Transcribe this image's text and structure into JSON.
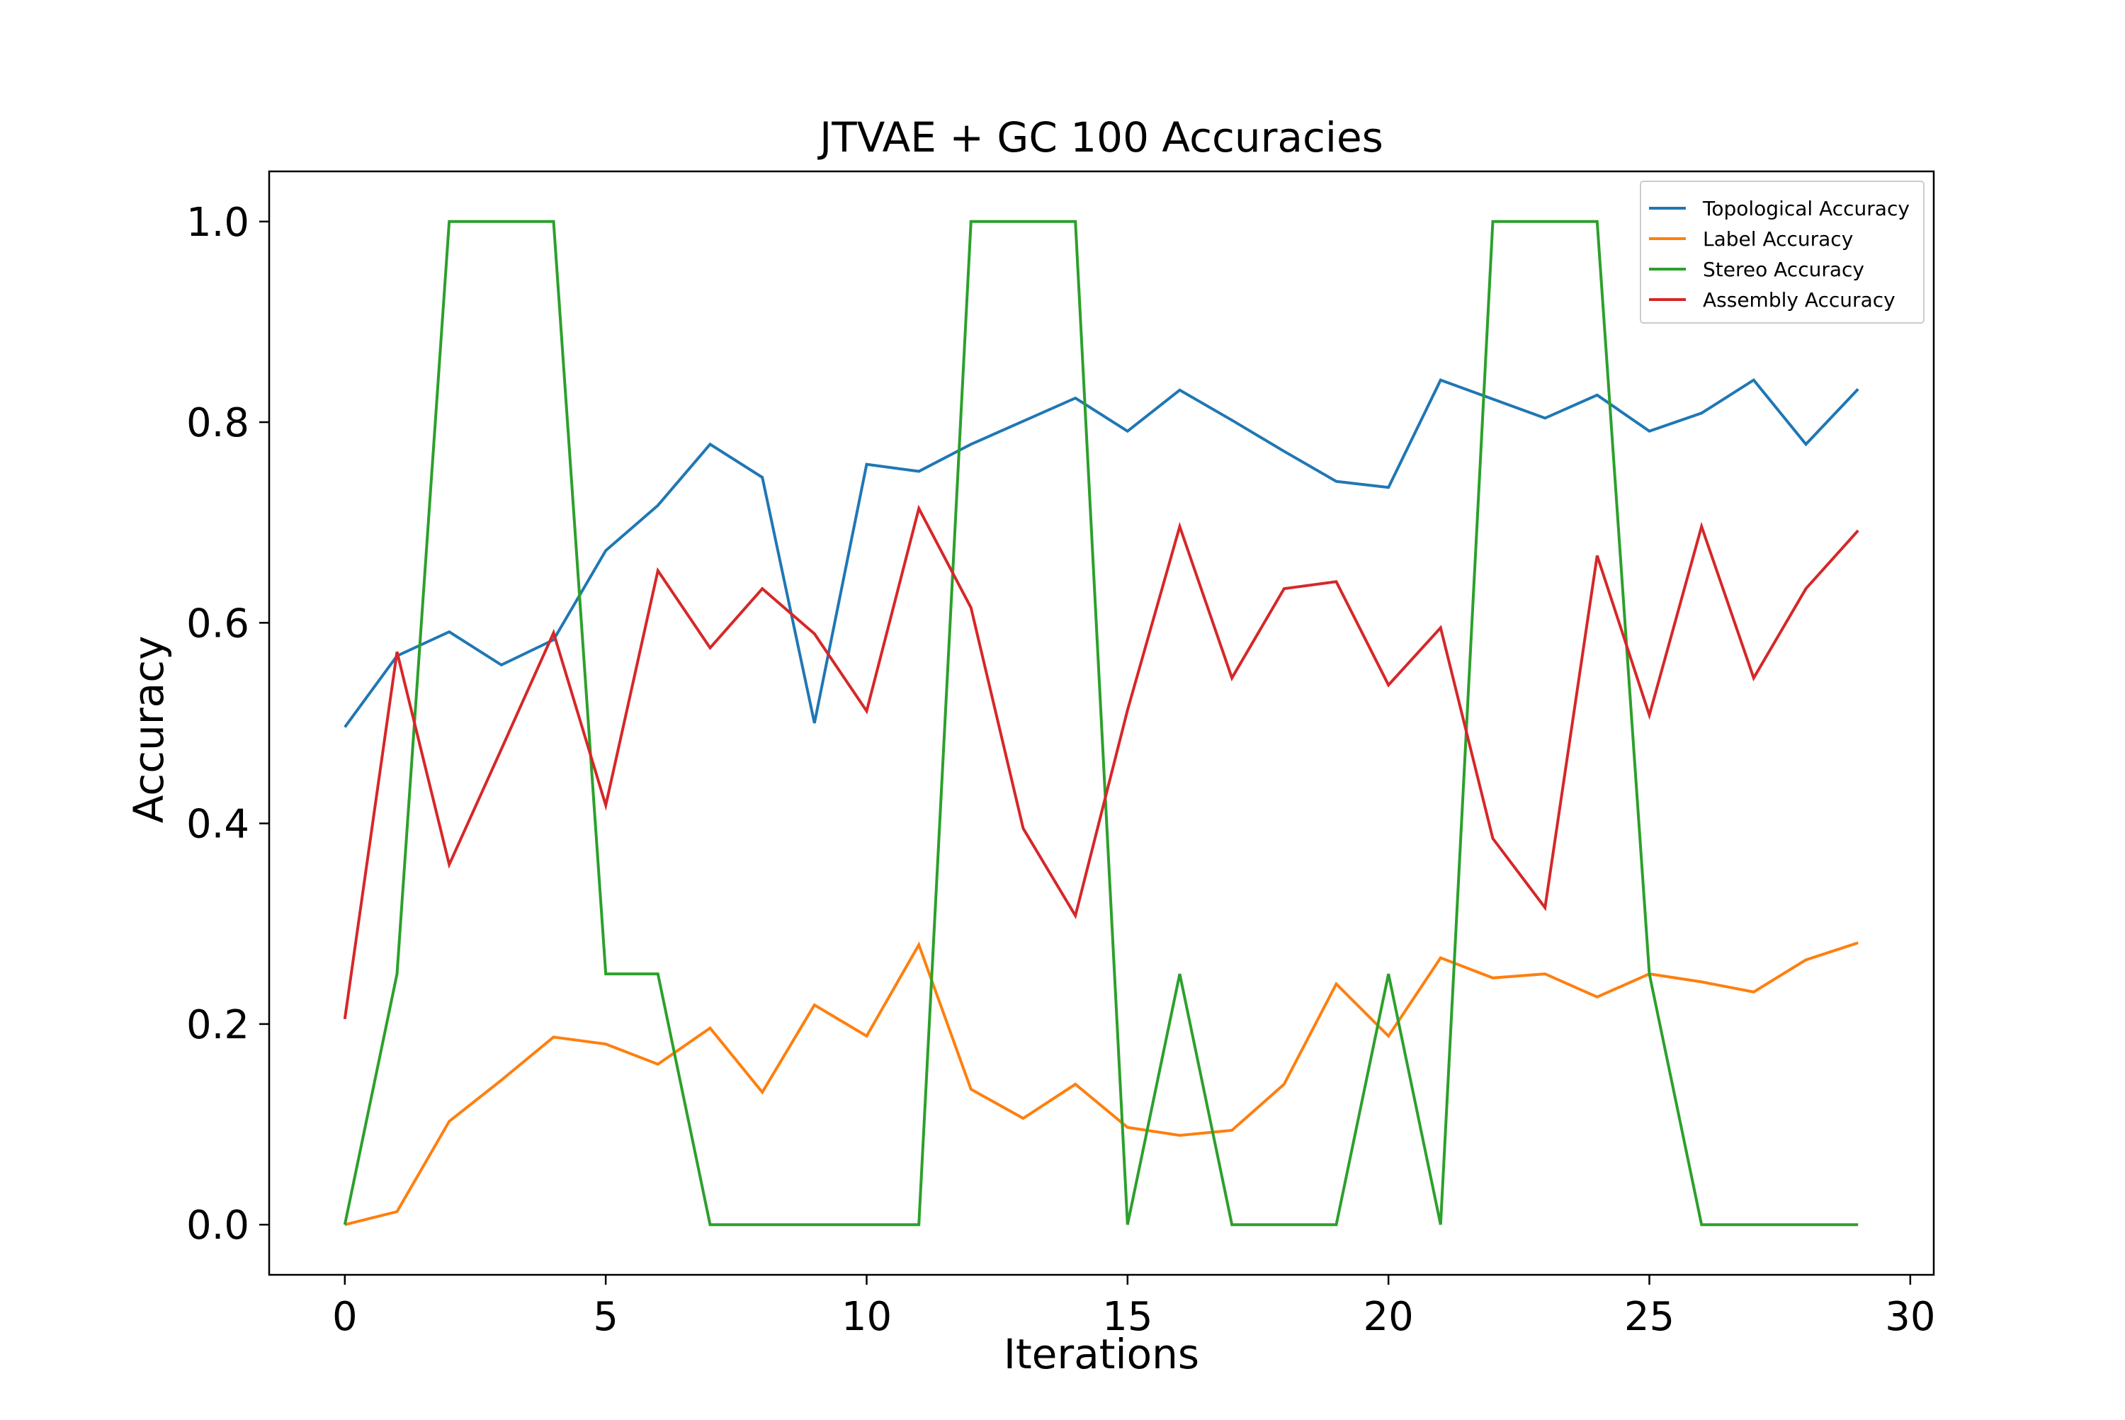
{
  "chart_data": {
    "type": "line",
    "title": "JTVAE + GC 100 Accuracies",
    "xlabel": "Iterations",
    "ylabel": "Accuracy",
    "xlim": [
      -1.45,
      30.45
    ],
    "ylim": [
      -0.05,
      1.05
    ],
    "xticks": [
      0,
      5,
      10,
      15,
      20,
      25,
      30
    ],
    "xtick_labels": [
      "0",
      "5",
      "10",
      "15",
      "20",
      "25",
      "30"
    ],
    "yticks": [
      0.0,
      0.2,
      0.4,
      0.6,
      0.8,
      1.0
    ],
    "ytick_labels": [
      "0.0",
      "0.2",
      "0.4",
      "0.6",
      "0.8",
      "1.0"
    ],
    "grid": false,
    "legend_position": "top-right",
    "x": [
      0,
      1,
      2,
      3,
      4,
      5,
      6,
      7,
      8,
      9,
      10,
      11,
      12,
      13,
      14,
      15,
      16,
      17,
      18,
      19,
      20,
      21,
      22,
      23,
      24,
      25,
      26,
      27,
      28,
      29
    ],
    "series": [
      {
        "name": "Topological Accuracy",
        "color": "#1f77b4",
        "values": [
          0.496,
          0.567,
          0.591,
          0.558,
          0.583,
          0.672,
          0.717,
          0.778,
          0.745,
          0.5,
          0.758,
          0.751,
          0.778,
          0.801,
          0.824,
          0.791,
          0.832,
          0.802,
          0.771,
          0.741,
          0.735,
          0.842,
          0.823,
          0.804,
          0.827,
          0.791,
          0.809,
          0.842,
          0.778,
          0.833
        ]
      },
      {
        "name": "Label Accuracy",
        "color": "#ff7f0e",
        "values": [
          0.0,
          0.013,
          0.103,
          0.144,
          0.187,
          0.18,
          0.16,
          0.196,
          0.132,
          0.219,
          0.188,
          0.279,
          0.135,
          0.106,
          0.14,
          0.097,
          0.089,
          0.094,
          0.14,
          0.24,
          0.188,
          0.266,
          0.246,
          0.25,
          0.227,
          0.25,
          0.242,
          0.232,
          0.264,
          0.281
        ]
      },
      {
        "name": "Stereo Accuracy",
        "color": "#2ca02c",
        "values": [
          0.0,
          0.25,
          1.0,
          1.0,
          1.0,
          0.25,
          0.25,
          0.0,
          0.0,
          0.0,
          0.0,
          0.0,
          1.0,
          1.0,
          1.0,
          0.0,
          0.25,
          0.0,
          0.0,
          0.0,
          0.25,
          0.0,
          1.0,
          1.0,
          1.0,
          0.25,
          0.0,
          0.0,
          0.0,
          0.0
        ]
      },
      {
        "name": "Assembly Accuracy",
        "color": "#d62728",
        "values": [
          0.205,
          0.571,
          0.359,
          0.474,
          0.59,
          0.418,
          0.652,
          0.575,
          0.634,
          0.589,
          0.512,
          0.714,
          0.615,
          0.395,
          0.308,
          0.513,
          0.696,
          0.545,
          0.634,
          0.641,
          0.538,
          0.595,
          0.385,
          0.316,
          0.667,
          0.508,
          0.696,
          0.545,
          0.634,
          0.692
        ]
      }
    ]
  }
}
